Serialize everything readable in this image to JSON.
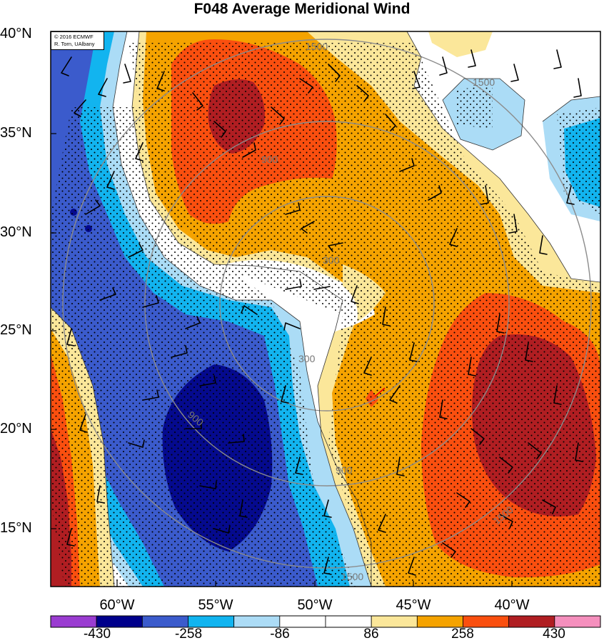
{
  "title": "F048 Average Meridional Wind",
  "credit": {
    "line1": "© 2016 ECMWF",
    "line2": "R. Torn, UAlbany"
  },
  "lat_labels": [
    "40°N",
    "35°N",
    "30°N",
    "25°N",
    "20°N",
    "15°N"
  ],
  "lon_labels": [
    "60°W",
    "55°W",
    "50°W",
    "45°W",
    "40°W"
  ],
  "range_ring_labels": [
    "300",
    "900",
    "1500"
  ],
  "colorbar": {
    "labels": [
      "-430",
      "-258",
      "-86",
      "86",
      "258",
      "430"
    ],
    "colors": [
      "#9a3cd1",
      "#00008b",
      "#3b5bcc",
      "#11b4f0",
      "#acdcf6",
      "#ffffff",
      "#ffffff",
      "#fbe79a",
      "#f5a300",
      "#fa4f0f",
      "#b01e22",
      "#f58fbd"
    ]
  },
  "colors": {
    "dark_blue": "#050a8e",
    "blue": "#3b5bcc",
    "cyan": "#12b4ef",
    "light_blue": "#abdcf6",
    "light_yellow": "#fbe79a",
    "orange": "#f5a300",
    "red_orange": "#fa4f0f",
    "dark_red": "#b01e22"
  }
}
